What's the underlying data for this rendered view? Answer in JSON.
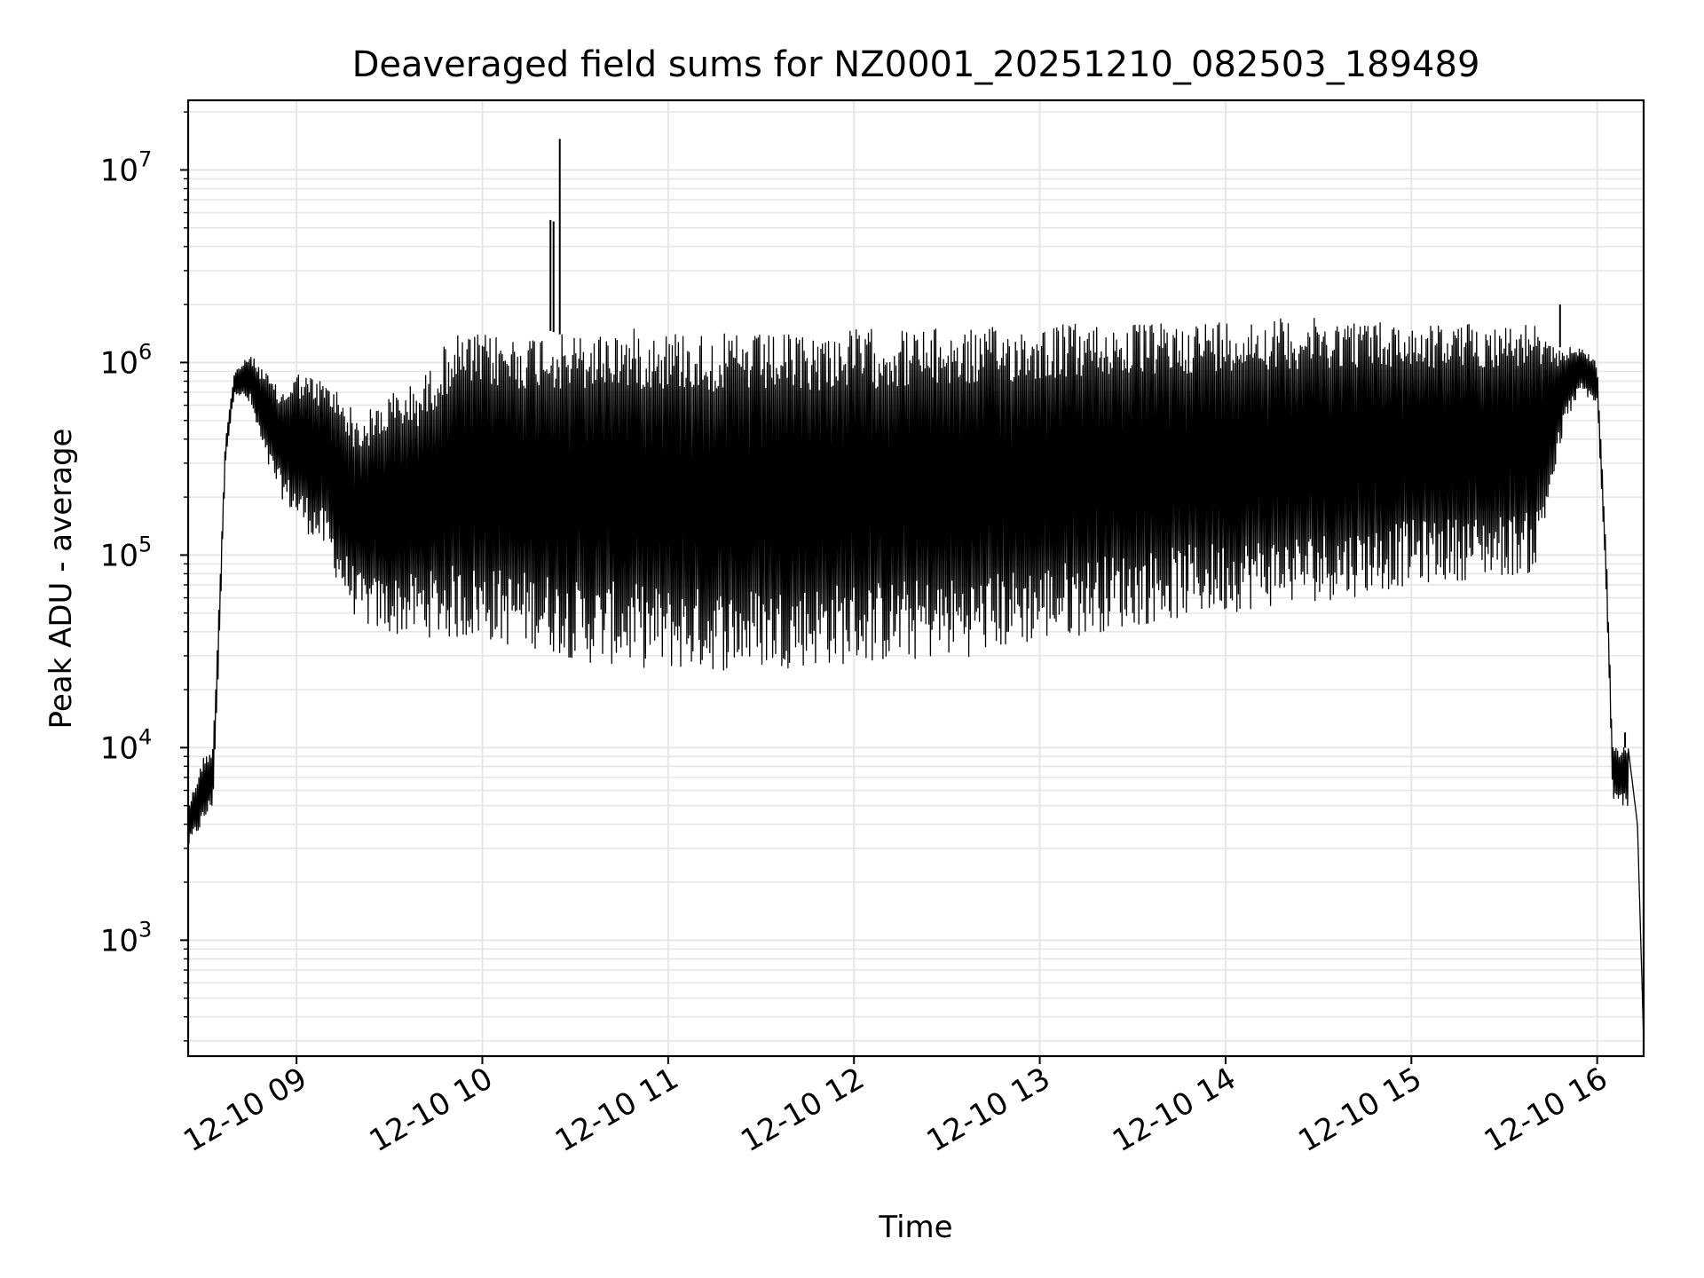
{
  "chart_data": {
    "type": "line",
    "title": "Deaveraged field sums for NZ0001_20251210_082503_189489",
    "xlabel": "Time",
    "ylabel": "Peak ADU - average",
    "x_tick_labels": [
      "12-10 09",
      "12-10 10",
      "12-10 11",
      "12-10 12",
      "12-10 13",
      "12-10 14",
      "12-10 15",
      "12-10 16"
    ],
    "y_tick_labels": [
      {
        "base": "10",
        "exp": "3"
      },
      {
        "base": "10",
        "exp": "4"
      },
      {
        "base": "10",
        "exp": "5"
      },
      {
        "base": "10",
        "exp": "6"
      },
      {
        "base": "10",
        "exp": "7"
      }
    ],
    "x_range": [
      "2025-12-10 08:25",
      "2025-12-10 16:15"
    ],
    "y_range": [
      250,
      23000000
    ],
    "y_scale": "log",
    "grid": true,
    "line_color": "#000000",
    "grid_color": "#e6e6e6",
    "envelope": {
      "description_times": "anchor times with upper and lower envelope values (ADU)",
      "times": [
        "08:25",
        "08:30",
        "08:33",
        "08:35",
        "08:37",
        "08:40",
        "08:45",
        "08:50",
        "08:55",
        "09:00",
        "09:10",
        "09:15",
        "09:20",
        "09:25",
        "09:30",
        "09:40",
        "09:50",
        "10:00",
        "10:10",
        "10:15",
        "10:20",
        "10:25",
        "10:27",
        "10:30",
        "10:35",
        "10:40",
        "10:50",
        "11:00",
        "11:20",
        "11:40",
        "12:00",
        "12:20",
        "12:40",
        "13:00",
        "13:20",
        "13:40",
        "14:00",
        "14:20",
        "14:40",
        "15:00",
        "15:20",
        "15:40",
        "15:45",
        "15:50",
        "15:55",
        "16:00",
        "16:03",
        "16:05",
        "16:08",
        "16:10",
        "16:13",
        "16:15"
      ],
      "upper": [
        5000,
        9000,
        10000,
        60000,
        400000,
        900000,
        1100000,
        900000,
        700000,
        900000,
        800000,
        700000,
        500000,
        600000,
        700000,
        800000,
        1400000,
        1400000,
        1400000,
        1400000,
        1500000,
        1400000,
        1400000,
        1400000,
        1400000,
        1500000,
        1500000,
        1500000,
        1400000,
        1400000,
        1500000,
        1500000,
        1500000,
        1600000,
        1600000,
        1600000,
        1700000,
        1700000,
        1700000,
        1600000,
        1600000,
        1600000,
        1200000,
        1200000,
        1200000,
        1000000,
        100000,
        10000,
        10000,
        10000,
        4000,
        300
      ],
      "lower": [
        3000,
        4000,
        5000,
        30000,
        300000,
        700000,
        600000,
        300000,
        200000,
        150000,
        100000,
        60000,
        45000,
        40000,
        38000,
        38000,
        36000,
        36000,
        33000,
        33000,
        32000,
        30000,
        30000,
        28000,
        27000,
        27000,
        26000,
        25000,
        25000,
        26000,
        27000,
        28000,
        30000,
        35000,
        40000,
        45000,
        50000,
        55000,
        60000,
        70000,
        75000,
        80000,
        200000,
        500000,
        700000,
        600000,
        60000,
        5000,
        5000,
        5000,
        2000,
        300
      ]
    },
    "spikes": [
      {
        "time": "10:22",
        "value": 5500000
      },
      {
        "time": "10:23",
        "value": 5400000
      },
      {
        "time": "10:25",
        "value": 14500000
      },
      {
        "time": "15:48",
        "value": 2000000
      },
      {
        "time": "16:09",
        "value": 12000
      }
    ]
  }
}
